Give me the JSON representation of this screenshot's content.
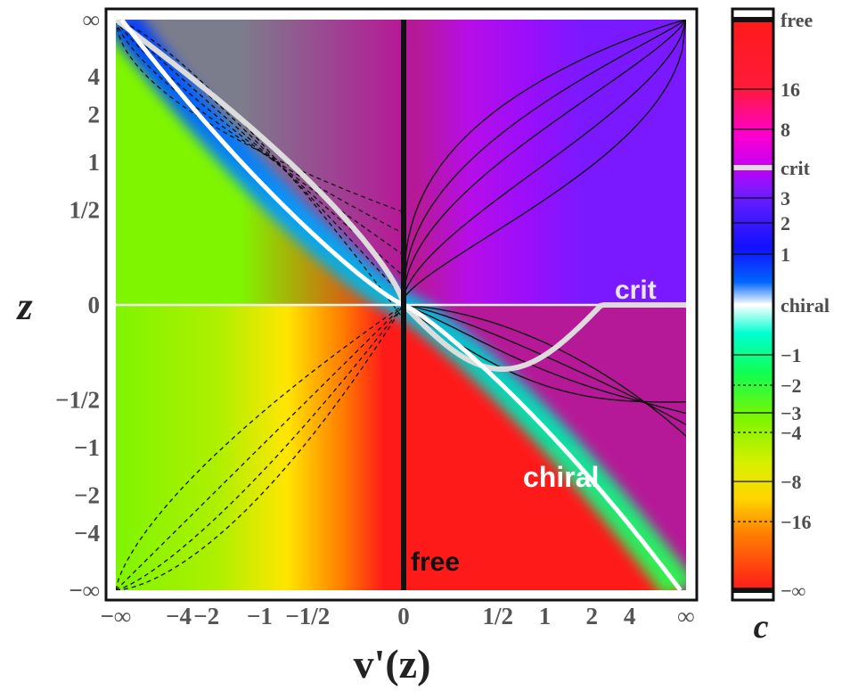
{
  "chart_data": {
    "type": "line",
    "xlabel": "v'(z)",
    "ylabel": "z",
    "x_ticks": [
      "−∞",
      "−4",
      "−2",
      "−1",
      "−1/2",
      "0",
      "1/2",
      "1",
      "2",
      "4",
      "∞"
    ],
    "y_ticks": [
      "∞",
      "4",
      "2",
      "1",
      "1/2",
      "0",
      "−1/2",
      "−1",
      "−2",
      "−4",
      "−∞"
    ],
    "colorbar": {
      "label": "c",
      "ticks": [
        "free",
        "16",
        "8",
        "crit",
        "3",
        "2",
        "1",
        "chiral",
        "−1",
        "−2",
        "−3",
        "−4",
        "−8",
        "−16",
        "−∞"
      ]
    },
    "annotations": {
      "free": "free",
      "crit": "crit",
      "chiral": "chiral"
    },
    "colors": {
      "free": "#ff1a1a",
      "crit": "#dcdcdc",
      "chiral": "#ffffff",
      "positive_c": "#7a1aff",
      "negative_c": "#7ff500"
    },
    "series": [
      {
        "name": "free",
        "style": "thick-black",
        "points": [
          [
            0,
            "−∞"
          ],
          [
            0,
            "∞"
          ]
        ]
      },
      {
        "name": "crit",
        "style": "thick-lightgray",
        "points": [
          [
            "−∞",
            "∞"
          ],
          [
            -0.5,
            1
          ],
          [
            0,
            0
          ],
          [
            0.5,
            -0.4
          ],
          [
            "∞",
            0
          ]
        ]
      },
      {
        "name": "chiral",
        "style": "thick-white",
        "points": [
          [
            "−∞",
            "∞"
          ],
          [
            -0.5,
            1
          ],
          [
            0,
            0
          ],
          [
            0.5,
            -1
          ],
          [
            "∞",
            "−∞"
          ]
        ]
      }
    ]
  }
}
